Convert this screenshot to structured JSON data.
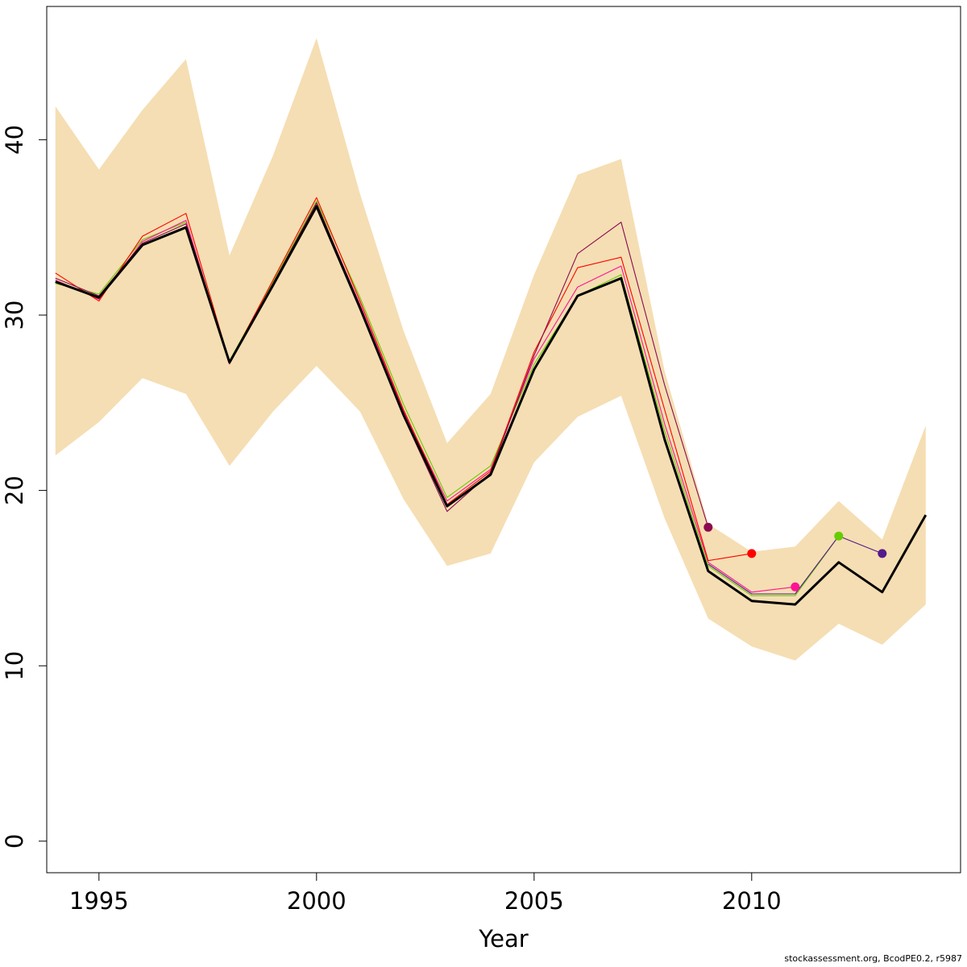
{
  "chart_data": {
    "type": "line",
    "xlabel": "Year",
    "ylabel": "",
    "xlim": [
      1993.8,
      2014.8
    ],
    "ylim": [
      -1.8,
      47.6
    ],
    "x_ticks": [
      1995,
      2000,
      2005,
      2010
    ],
    "y_ticks": [
      0,
      10,
      20,
      30,
      40
    ],
    "confidence_band": {
      "color": "#f5deb3",
      "x": [
        1994,
        1995,
        1996,
        1997,
        1998,
        1999,
        2000,
        2001,
        2002,
        2003,
        2004,
        2005,
        2006,
        2007,
        2008,
        2009,
        2010,
        2011,
        2012,
        2013,
        2014
      ],
      "upper": [
        41.9,
        38.3,
        41.7,
        44.6,
        33.4,
        39.1,
        45.8,
        36.9,
        29.1,
        22.7,
        25.5,
        32.3,
        38.0,
        38.9,
        26.8,
        18.1,
        16.5,
        16.8,
        19.4,
        17.2,
        23.7
      ],
      "lower": [
        22.0,
        23.9,
        26.4,
        25.5,
        21.4,
        24.5,
        27.1,
        24.5,
        19.5,
        15.7,
        16.4,
        21.6,
        24.2,
        25.4,
        18.4,
        12.7,
        11.1,
        10.3,
        12.4,
        11.2,
        13.5
      ]
    },
    "series": [
      {
        "color": "#000000",
        "x": [
          1994,
          1995,
          1996,
          1997,
          1998,
          1999,
          2000,
          2001,
          2002,
          2003,
          2004,
          2005,
          2006,
          2007,
          2008,
          2009,
          2010,
          2011,
          2012,
          2013,
          2014
        ],
        "values": [
          31.9,
          31.0,
          34.0,
          35.0,
          27.3,
          31.7,
          36.2,
          30.4,
          24.3,
          19.1,
          20.9,
          26.9,
          31.1,
          32.1,
          22.9,
          15.4,
          13.7,
          13.5,
          15.9,
          14.2,
          18.6
        ]
      },
      {
        "color": "#66cd00",
        "x": [
          1994,
          1995,
          1996,
          1997,
          1998,
          1999,
          2000,
          2001,
          2002,
          2003,
          2004,
          2005,
          2006,
          2007,
          2008,
          2009,
          2010,
          2011,
          2012
        ],
        "values": [
          31.8,
          31.2,
          34.3,
          35.3,
          27.4,
          31.9,
          36.5,
          31.0,
          24.9,
          19.6,
          21.4,
          27.2,
          31.1,
          32.3,
          23.4,
          15.7,
          14.0,
          14.0,
          17.4
        ],
        "endpoint": true
      },
      {
        "color": "#ff1493",
        "x": [
          1994,
          1995,
          1996,
          1997,
          1998,
          1999,
          2000,
          2001,
          2002,
          2003,
          2004,
          2005,
          2006,
          2007,
          2008,
          2009,
          2010,
          2011
        ],
        "values": [
          32.0,
          30.9,
          34.2,
          35.4,
          27.2,
          31.8,
          36.3,
          30.6,
          24.5,
          19.4,
          21.2,
          27.5,
          31.6,
          32.8,
          23.8,
          15.9,
          14.2,
          14.5
        ],
        "endpoint": true
      },
      {
        "color": "#ff0000",
        "x": [
          1994,
          1995,
          1996,
          1997,
          1998,
          1999,
          2000,
          2001,
          2002,
          2003,
          2004,
          2005,
          2006,
          2007,
          2008,
          2009,
          2010
        ],
        "values": [
          32.4,
          30.8,
          34.5,
          35.8,
          27.3,
          32.0,
          36.7,
          30.8,
          24.6,
          19.2,
          21.1,
          27.9,
          32.7,
          33.3,
          24.6,
          16.0,
          16.4
        ],
        "endpoint": true
      },
      {
        "color": "#8b0a50",
        "x": [
          1994,
          1995,
          1996,
          1997,
          1998,
          1999,
          2000,
          2001,
          2002,
          2003,
          2004,
          2005,
          2006,
          2007,
          2008,
          2009
        ],
        "values": [
          32.1,
          31.1,
          34.1,
          35.2,
          27.3,
          31.8,
          36.4,
          30.5,
          24.2,
          18.8,
          21.0,
          27.7,
          33.5,
          35.3,
          26.0,
          17.9
        ],
        "endpoint": true
      },
      {
        "color": "#551a8b",
        "x": [
          2009,
          2010,
          2011,
          2012,
          2013
        ],
        "values": [
          15.8,
          14.1,
          14.1,
          17.4,
          16.4
        ],
        "endpoint": true
      }
    ]
  },
  "footer": "stockassessment.org, BcodPE0.2, r5987"
}
